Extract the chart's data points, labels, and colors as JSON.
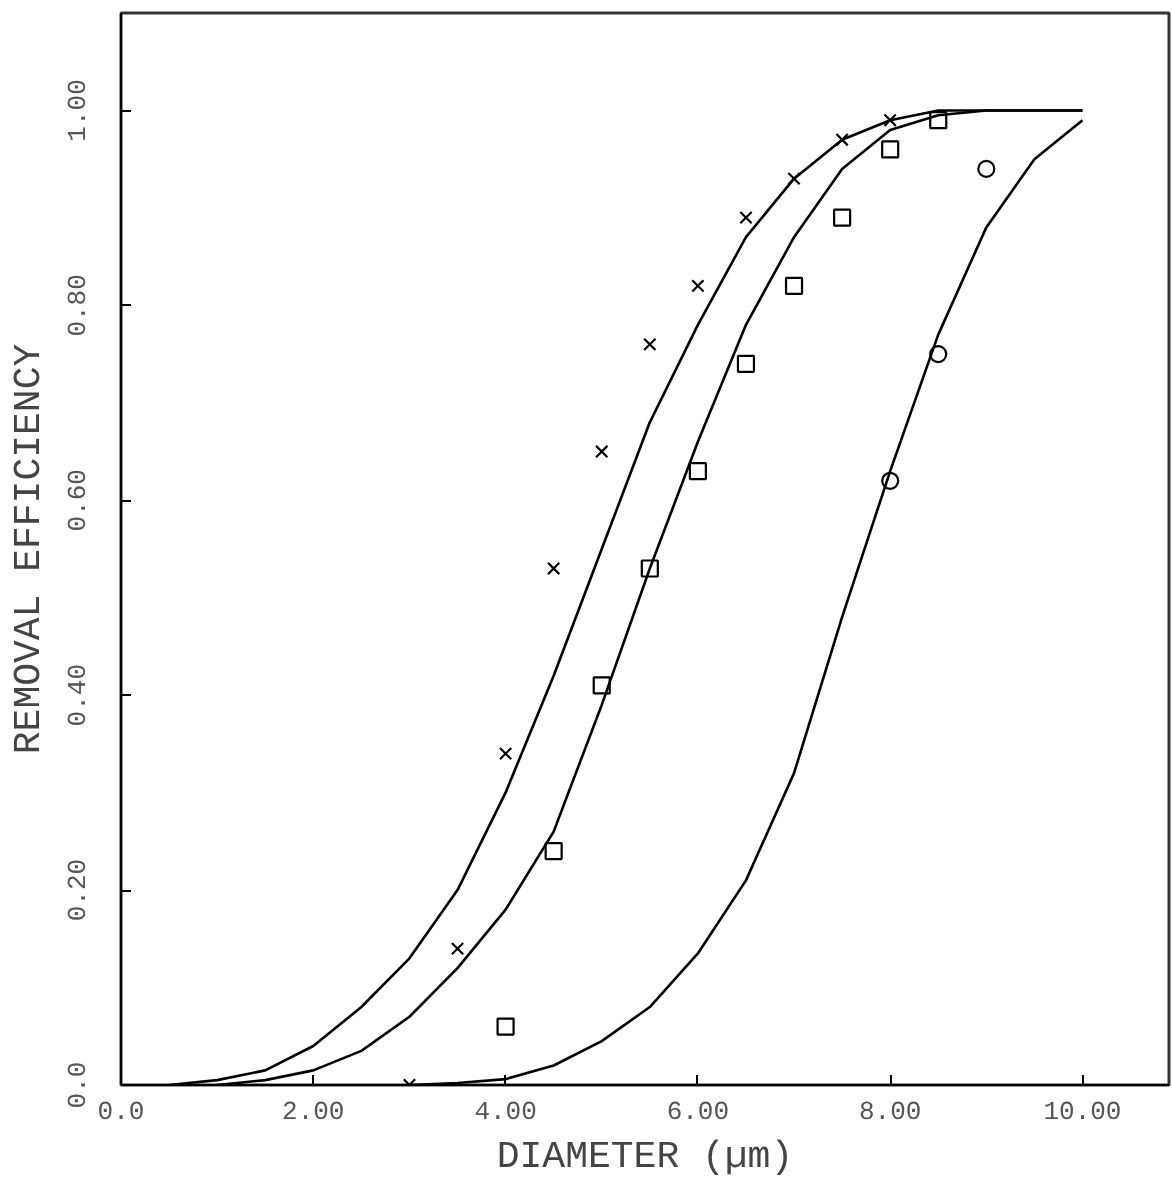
{
  "chart_data": {
    "type": "line",
    "xlabel": "DIAMETER (µm)",
    "ylabel": "REMOVAL EFFICIENCY",
    "xlim": [
      0,
      10.9
    ],
    "ylim": [
      0,
      1.1
    ],
    "xticks": [
      {
        "value": 0,
        "label": "0.0"
      },
      {
        "value": 2,
        "label": "2.00"
      },
      {
        "value": 4,
        "label": "4.00"
      },
      {
        "value": 6,
        "label": "6.00"
      },
      {
        "value": 8,
        "label": "8.00"
      },
      {
        "value": 10,
        "label": "10.00"
      }
    ],
    "yticks": [
      {
        "value": 0,
        "label": "0.0"
      },
      {
        "value": 0.2,
        "label": "0.20"
      },
      {
        "value": 0.4,
        "label": "0.40"
      },
      {
        "value": 0.6,
        "label": "0.60"
      },
      {
        "value": 0.8,
        "label": "0.80"
      },
      {
        "value": 1,
        "label": "1.00"
      }
    ],
    "grid": false,
    "series": [
      {
        "color": "#000000",
        "x": [
          0.5,
          1,
          1.5,
          2,
          2.5,
          3,
          3.5,
          4,
          4.5,
          5,
          5.5,
          6,
          6.5,
          7,
          7.5,
          8,
          8.5,
          9,
          9.5,
          10
        ],
        "values": [
          0,
          0.005,
          0.015,
          0.04,
          0.08,
          0.13,
          0.2,
          0.3,
          0.42,
          0.55,
          0.68,
          0.78,
          0.87,
          0.93,
          0.97,
          0.99,
          1.0,
          1.0,
          1.0,
          1.0
        ]
      },
      {
        "color": "#000000",
        "x": [
          1,
          1.5,
          2,
          2.5,
          3,
          3.5,
          4,
          4.5,
          5,
          5.5,
          6,
          6.5,
          7,
          7.5,
          8,
          8.5,
          9,
          9.5,
          10
        ],
        "values": [
          0,
          0.005,
          0.015,
          0.035,
          0.07,
          0.12,
          0.18,
          0.26,
          0.39,
          0.53,
          0.66,
          0.78,
          0.87,
          0.94,
          0.98,
          0.995,
          1.0,
          1.0,
          1.0
        ]
      },
      {
        "color": "#000000",
        "x": [
          3,
          3.5,
          4,
          4.5,
          5,
          5.5,
          6,
          6.5,
          7,
          7.5,
          8,
          8.5,
          9,
          9.5,
          10
        ],
        "values": [
          0,
          0.002,
          0.006,
          0.02,
          0.045,
          0.08,
          0.135,
          0.21,
          0.32,
          0.48,
          0.63,
          0.77,
          0.88,
          0.95,
          0.99
        ]
      },
      {
        "type": "scatter",
        "marker": "cross",
        "color": "#000000",
        "x": [
          3,
          3.5,
          4,
          4.5,
          5,
          5.5,
          6,
          6.5,
          7,
          7.5,
          8
        ],
        "values": [
          0.0,
          0.14,
          0.34,
          0.53,
          0.65,
          0.76,
          0.82,
          0.89,
          0.93,
          0.97,
          0.99
        ]
      },
      {
        "type": "scatter",
        "marker": "square",
        "color": "#000000",
        "x": [
          4,
          4.5,
          5,
          5.5,
          6,
          6.5,
          7,
          7.5,
          8,
          8.5
        ],
        "values": [
          0.06,
          0.24,
          0.41,
          0.53,
          0.63,
          0.74,
          0.82,
          0.89,
          0.96,
          0.99
        ]
      },
      {
        "type": "scatter",
        "marker": "circle",
        "color": "#000000",
        "x": [
          8,
          8.5,
          9
        ],
        "values": [
          0.62,
          0.75,
          0.94
        ]
      }
    ]
  }
}
